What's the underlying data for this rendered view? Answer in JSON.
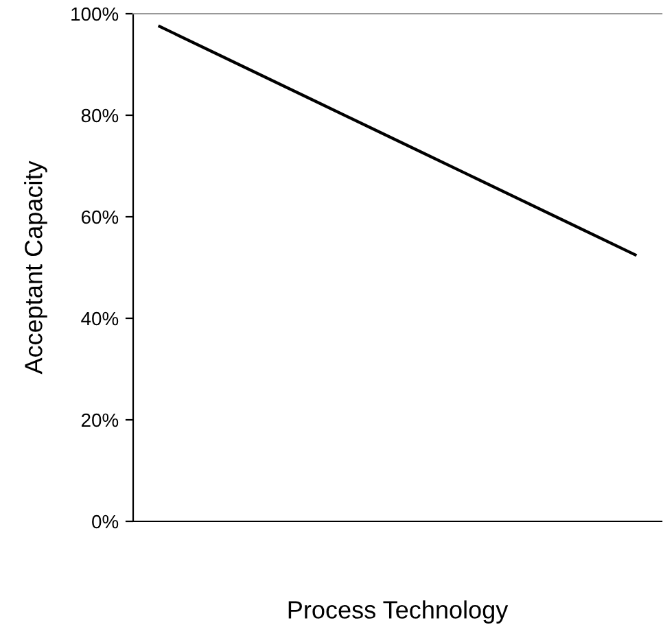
{
  "chart_data": {
    "type": "line",
    "xlabel": "Process Technology",
    "ylabel": "Acceptant Capacity",
    "categories": [
      null,
      null,
      null,
      null,
      null,
      null,
      null,
      null,
      null,
      null
    ],
    "series": [
      {
        "color": "#000000",
        "values": [
          97.5,
          92.5,
          87.5,
          82.5,
          77.5,
          72.5,
          67.5,
          62.5,
          57.5,
          52.5
        ]
      }
    ],
    "ylim": [
      0,
      100
    ],
    "yticks": [
      {
        "value": 0,
        "label": "0%"
      },
      {
        "value": 20,
        "label": "20%"
      },
      {
        "value": 40,
        "label": "40%"
      },
      {
        "value": 60,
        "label": "60%"
      },
      {
        "value": 80,
        "label": "80%"
      },
      {
        "value": 100,
        "label": "100%"
      }
    ],
    "grid": false,
    "legend": false,
    "marker": "none",
    "line_style": "solid"
  }
}
